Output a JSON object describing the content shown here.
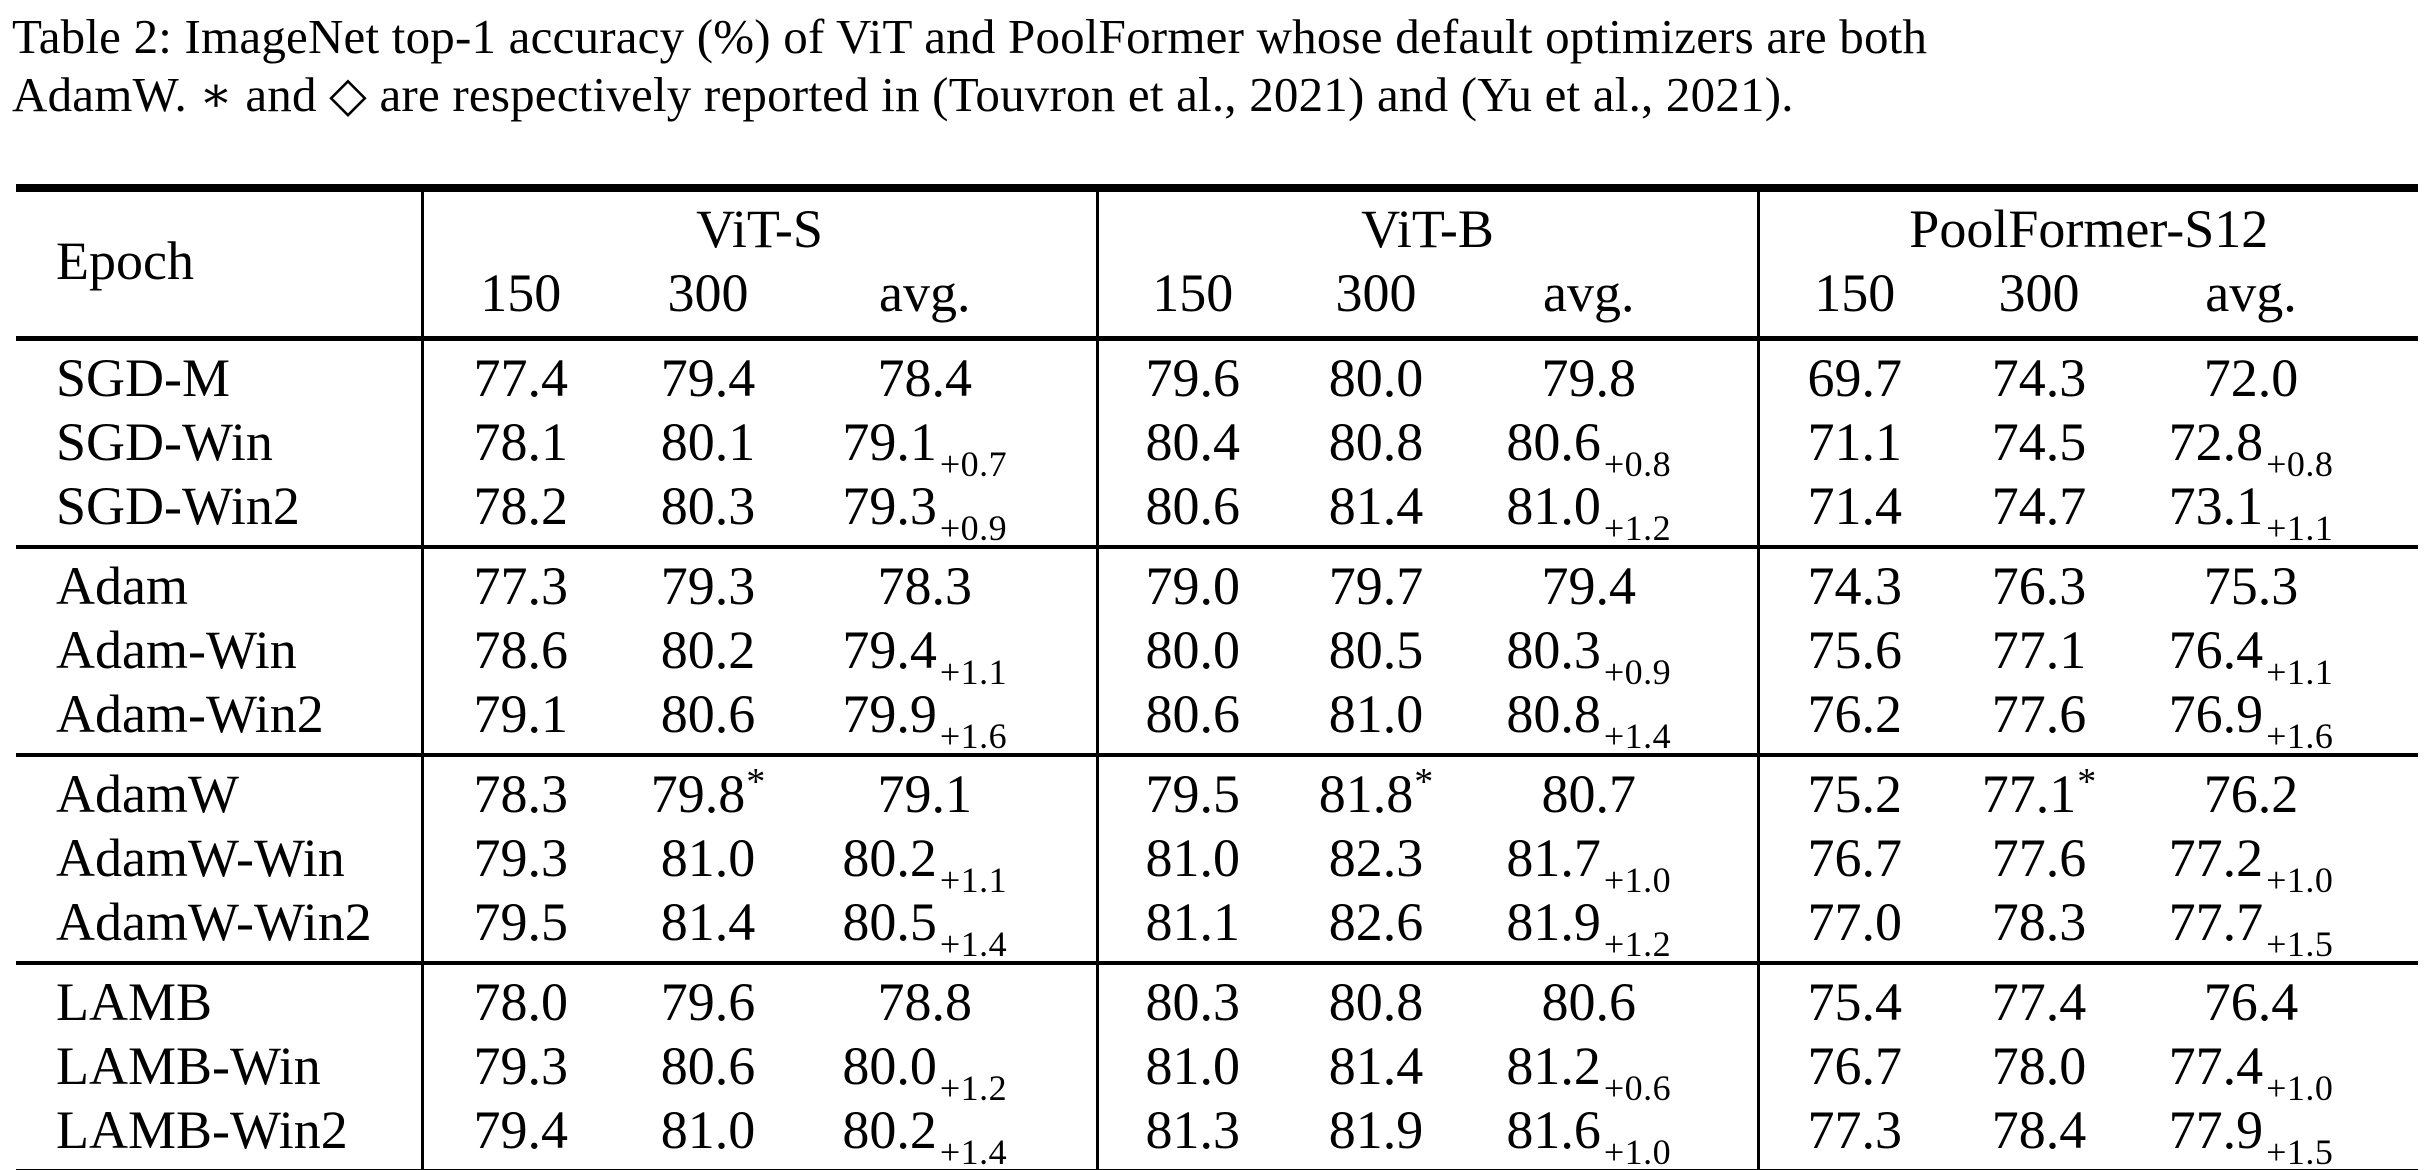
{
  "colors": {
    "background": "#ffffff",
    "text": "#000000",
    "rule": "#000000"
  },
  "caption": {
    "lines": [
      "Table 2: ImageNet top-1 accuracy (%) of ViT and PoolFormer whose default optimizers are both",
      "AdamW. ∗ and ◇ are respectively reported in (Touvron et al., 2021) and (Yu et al., 2021)."
    ]
  },
  "table": {
    "row_header": "Epoch",
    "groups": [
      "ViT-S",
      "ViT-B",
      "PoolFormer-S12"
    ],
    "sub_columns": [
      "150",
      "300",
      "avg."
    ],
    "sections": [
      {
        "rows": [
          {
            "label": "SGD-M",
            "cells": [
              {
                "v": "77.4"
              },
              {
                "v": "79.4"
              },
              {
                "v": "78.4"
              },
              {
                "v": "79.6"
              },
              {
                "v": "80.0"
              },
              {
                "v": "79.8"
              },
              {
                "v": "69.7"
              },
              {
                "v": "74.3"
              },
              {
                "v": "72.0"
              }
            ]
          },
          {
            "label": "SGD-Win",
            "cells": [
              {
                "v": "78.1"
              },
              {
                "v": "80.1"
              },
              {
                "v": "79.1",
                "sub": "+0.7"
              },
              {
                "v": "80.4"
              },
              {
                "v": "80.8"
              },
              {
                "v": "80.6",
                "sub": "+0.8"
              },
              {
                "v": "71.1"
              },
              {
                "v": "74.5"
              },
              {
                "v": "72.8",
                "sub": "+0.8"
              }
            ]
          },
          {
            "label": "SGD-Win2",
            "cells": [
              {
                "v": "78.2"
              },
              {
                "v": "80.3"
              },
              {
                "v": "79.3",
                "sub": "+0.9"
              },
              {
                "v": "80.6"
              },
              {
                "v": "81.4"
              },
              {
                "v": "81.0",
                "sub": "+1.2"
              },
              {
                "v": "71.4"
              },
              {
                "v": "74.7"
              },
              {
                "v": "73.1",
                "sub": "+1.1"
              }
            ]
          }
        ]
      },
      {
        "rows": [
          {
            "label": "Adam",
            "cells": [
              {
                "v": "77.3"
              },
              {
                "v": "79.3"
              },
              {
                "v": "78.3"
              },
              {
                "v": "79.0"
              },
              {
                "v": "79.7"
              },
              {
                "v": "79.4"
              },
              {
                "v": "74.3"
              },
              {
                "v": "76.3"
              },
              {
                "v": "75.3"
              }
            ]
          },
          {
            "label": "Adam-Win",
            "cells": [
              {
                "v": "78.6"
              },
              {
                "v": "80.2"
              },
              {
                "v": "79.4",
                "sub": "+1.1"
              },
              {
                "v": "80.0"
              },
              {
                "v": "80.5"
              },
              {
                "v": "80.3",
                "sub": "+0.9"
              },
              {
                "v": "75.6"
              },
              {
                "v": "77.1"
              },
              {
                "v": "76.4",
                "sub": "+1.1"
              }
            ]
          },
          {
            "label": "Adam-Win2",
            "cells": [
              {
                "v": "79.1"
              },
              {
                "v": "80.6"
              },
              {
                "v": "79.9",
                "sub": "+1.6"
              },
              {
                "v": "80.6"
              },
              {
                "v": "81.0"
              },
              {
                "v": "80.8",
                "sub": "+1.4"
              },
              {
                "v": "76.2"
              },
              {
                "v": "77.6"
              },
              {
                "v": "76.9",
                "sub": "+1.6"
              }
            ]
          }
        ]
      },
      {
        "rows": [
          {
            "label": "AdamW",
            "cells": [
              {
                "v": "78.3"
              },
              {
                "v": "79.8",
                "sup": "*"
              },
              {
                "v": "79.1"
              },
              {
                "v": "79.5"
              },
              {
                "v": "81.8",
                "sup": "*"
              },
              {
                "v": "80.7"
              },
              {
                "v": "75.2"
              },
              {
                "v": "77.1",
                "sup": "*"
              },
              {
                "v": "76.2"
              }
            ]
          },
          {
            "label": "AdamW-Win",
            "cells": [
              {
                "v": "79.3"
              },
              {
                "v": "81.0"
              },
              {
                "v": "80.2",
                "sub": "+1.1"
              },
              {
                "v": "81.0"
              },
              {
                "v": "82.3"
              },
              {
                "v": "81.7",
                "sub": "+1.0"
              },
              {
                "v": "76.7"
              },
              {
                "v": "77.6"
              },
              {
                "v": "77.2",
                "sub": "+1.0"
              }
            ]
          },
          {
            "label": "AdamW-Win2",
            "cells": [
              {
                "v": "79.5"
              },
              {
                "v": "81.4"
              },
              {
                "v": "80.5",
                "sub": "+1.4"
              },
              {
                "v": "81.1"
              },
              {
                "v": "82.6"
              },
              {
                "v": "81.9",
                "sub": "+1.2"
              },
              {
                "v": "77.0"
              },
              {
                "v": "78.3"
              },
              {
                "v": "77.7",
                "sub": "+1.5"
              }
            ]
          }
        ]
      },
      {
        "rows": [
          {
            "label": "LAMB",
            "cells": [
              {
                "v": "78.0"
              },
              {
                "v": "79.6"
              },
              {
                "v": "78.8"
              },
              {
                "v": "80.3"
              },
              {
                "v": "80.8"
              },
              {
                "v": "80.6"
              },
              {
                "v": "75.4"
              },
              {
                "v": "77.4"
              },
              {
                "v": "76.4"
              }
            ]
          },
          {
            "label": "LAMB-Win",
            "cells": [
              {
                "v": "79.3"
              },
              {
                "v": "80.6"
              },
              {
                "v": "80.0",
                "sub": "+1.2"
              },
              {
                "v": "81.0"
              },
              {
                "v": "81.4"
              },
              {
                "v": "81.2",
                "sub": "+0.6"
              },
              {
                "v": "76.7"
              },
              {
                "v": "78.0"
              },
              {
                "v": "77.4",
                "sub": "+1.0"
              }
            ]
          },
          {
            "label": "LAMB-Win2",
            "cells": [
              {
                "v": "79.4"
              },
              {
                "v": "81.0"
              },
              {
                "v": "80.2",
                "sub": "+1.4"
              },
              {
                "v": "81.3"
              },
              {
                "v": "81.9"
              },
              {
                "v": "81.6",
                "sub": "+1.0"
              },
              {
                "v": "77.3"
              },
              {
                "v": "78.4"
              },
              {
                "v": "77.9",
                "sub": "+1.5"
              }
            ]
          }
        ]
      }
    ]
  }
}
